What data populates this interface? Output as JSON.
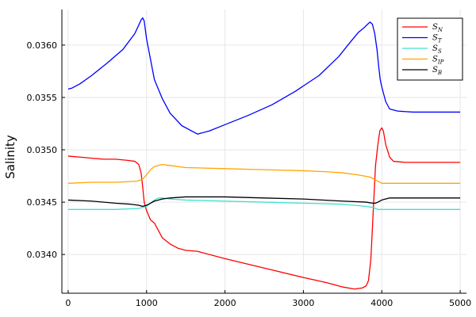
{
  "chart_data": {
    "type": "line",
    "title": "",
    "xlabel": "",
    "ylabel": "Salinity",
    "xlim": [
      -80,
      5080
    ],
    "ylim": [
      0.03363,
      0.03634
    ],
    "xticks": [
      0,
      1000,
      2000,
      3000,
      4000,
      5000
    ],
    "xtick_labels": [
      "0",
      "1000",
      "2000",
      "3000",
      "4000",
      "5000"
    ],
    "yticks": [
      0.034,
      0.0345,
      0.035,
      0.0355,
      0.036
    ],
    "ytick_labels": [
      "0.0340",
      "0.0345",
      "0.0350",
      "0.0355",
      "0.0360"
    ],
    "grid": true,
    "legend_position": "top-right",
    "series": [
      {
        "name": "S_N",
        "legend_main": "S",
        "legend_sub": "N",
        "color": "#ff0000",
        "x": [
          0,
          150,
          300,
          450,
          600,
          750,
          850,
          900,
          930,
          950,
          970,
          1000,
          1050,
          1100,
          1200,
          1300,
          1400,
          1500,
          1650,
          2000,
          2500,
          3000,
          3300,
          3500,
          3650,
          3750,
          3800,
          3830,
          3860,
          3880,
          3900,
          3920,
          3950,
          3975,
          4000,
          4020,
          4050,
          4100,
          4150,
          4300,
          4600,
          5000
        ],
        "y": [
          0.03494,
          0.03493,
          0.03492,
          0.03491,
          0.03491,
          0.0349,
          0.03489,
          0.03486,
          0.03478,
          0.03465,
          0.0345,
          0.03442,
          0.03433,
          0.0343,
          0.03416,
          0.0341,
          0.03406,
          0.03404,
          0.03403,
          0.03396,
          0.03387,
          0.03378,
          0.03373,
          0.03369,
          0.03367,
          0.03368,
          0.0337,
          0.03375,
          0.03395,
          0.03425,
          0.03455,
          0.03485,
          0.03505,
          0.03518,
          0.03521,
          0.03518,
          0.03505,
          0.03493,
          0.03489,
          0.03488,
          0.03488,
          0.03488
        ]
      },
      {
        "name": "S_T",
        "legend_main": "S",
        "legend_sub": "T",
        "color": "#0000ff",
        "x": [
          0,
          50,
          150,
          300,
          500,
          700,
          850,
          900,
          930,
          950,
          970,
          1000,
          1100,
          1200,
          1300,
          1450,
          1650,
          1800,
          2000,
          2300,
          2600,
          2900,
          3200,
          3450,
          3600,
          3700,
          3780,
          3820,
          3850,
          3880,
          3910,
          3940,
          3960,
          3980,
          4000,
          4050,
          4100,
          4200,
          4400,
          4700,
          5000
        ],
        "y": [
          0.03558,
          0.03559,
          0.03563,
          0.03571,
          0.03583,
          0.03596,
          0.03611,
          0.03619,
          0.03624,
          0.03626,
          0.03623,
          0.03606,
          0.03567,
          0.03549,
          0.03535,
          0.03523,
          0.03515,
          0.03518,
          0.03524,
          0.03533,
          0.03543,
          0.03556,
          0.03571,
          0.03589,
          0.03603,
          0.03612,
          0.03617,
          0.0362,
          0.03622,
          0.0362,
          0.03611,
          0.03595,
          0.0358,
          0.03567,
          0.0356,
          0.03546,
          0.03539,
          0.03537,
          0.03536,
          0.03536,
          0.03536
        ]
      },
      {
        "name": "S_S",
        "legend_main": "S",
        "legend_sub": "S",
        "color": "#40e0d0",
        "x": [
          0,
          300,
          600,
          900,
          1000,
          1050,
          1100,
          1150,
          1200,
          1300,
          1500,
          2000,
          2500,
          3000,
          3500,
          3800,
          3880,
          3920,
          3950,
          4000,
          4100,
          4500,
          5000
        ],
        "y": [
          0.03443,
          0.03443,
          0.03443,
          0.03444,
          0.03446,
          0.03449,
          0.03452,
          0.03454,
          0.03454,
          0.03453,
          0.03452,
          0.03451,
          0.0345,
          0.03449,
          0.03448,
          0.03446,
          0.03445,
          0.03444,
          0.03443,
          0.03443,
          0.03443,
          0.03443,
          0.03443
        ]
      },
      {
        "name": "S_IP",
        "legend_main": "S",
        "legend_sub": "IP",
        "color": "#ffa500",
        "x": [
          0,
          300,
          600,
          880,
          950,
          1000,
          1050,
          1100,
          1150,
          1200,
          1300,
          1500,
          2000,
          2500,
          3000,
          3300,
          3500,
          3700,
          3850,
          3900,
          3950,
          4000,
          4050,
          4200,
          5000
        ],
        "y": [
          0.03468,
          0.03469,
          0.03469,
          0.0347,
          0.03472,
          0.03476,
          0.03481,
          0.03484,
          0.03485,
          0.03486,
          0.03485,
          0.03483,
          0.03482,
          0.03481,
          0.0348,
          0.03479,
          0.03478,
          0.03476,
          0.03474,
          0.03472,
          0.0347,
          0.03468,
          0.03468,
          0.03468,
          0.03468
        ]
      },
      {
        "name": "S_B",
        "legend_main": "S",
        "legend_sub": "B",
        "color": "#000000",
        "x": [
          0,
          300,
          600,
          800,
          900,
          950,
          1000,
          1050,
          1100,
          1200,
          1300,
          1500,
          1700,
          2000,
          2500,
          3000,
          3500,
          3800,
          3880,
          3920,
          3950,
          4000,
          4100,
          4300,
          5000
        ],
        "y": [
          0.03452,
          0.03451,
          0.03449,
          0.03448,
          0.03447,
          0.03446,
          0.03447,
          0.03449,
          0.03451,
          0.03453,
          0.03454,
          0.03455,
          0.03455,
          0.03455,
          0.03454,
          0.03453,
          0.03451,
          0.0345,
          0.03449,
          0.03449,
          0.0345,
          0.03452,
          0.03454,
          0.03454,
          0.03454
        ]
      }
    ]
  }
}
